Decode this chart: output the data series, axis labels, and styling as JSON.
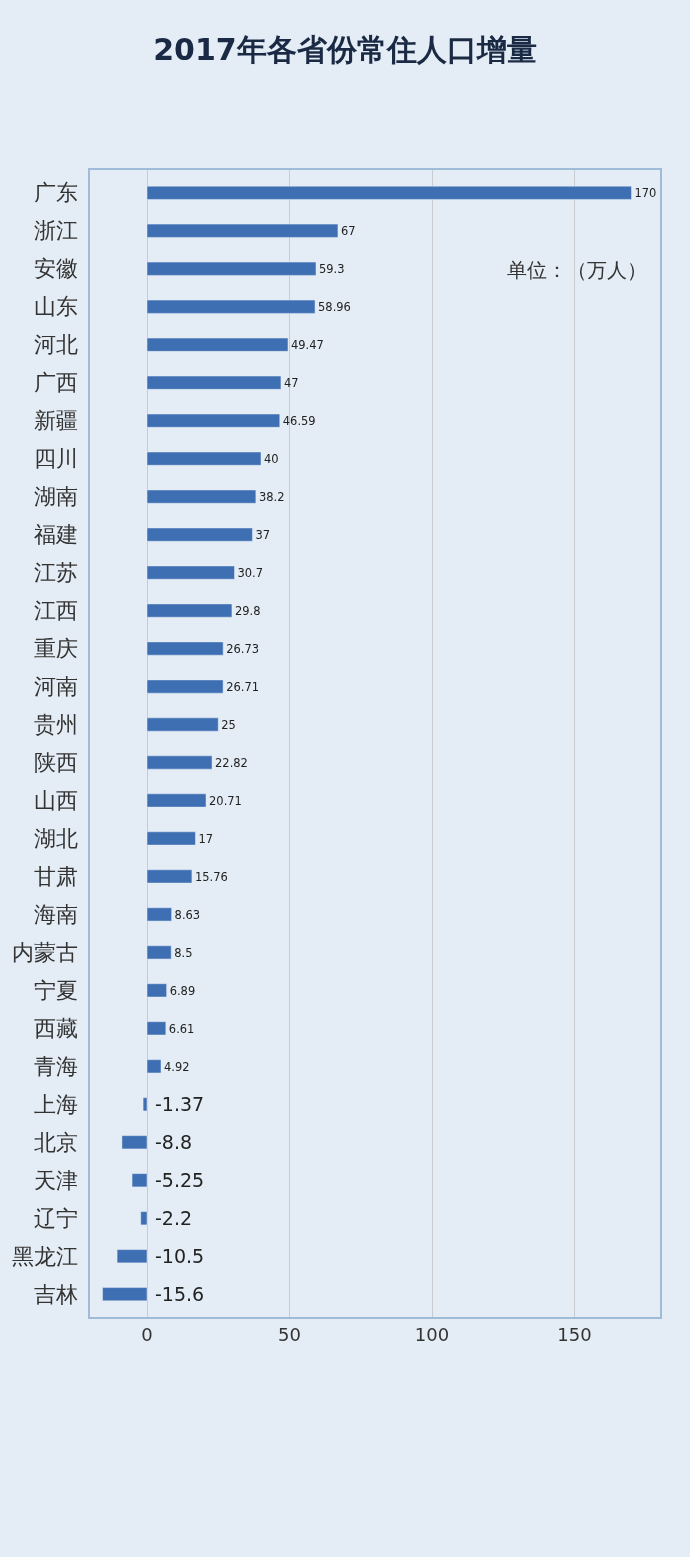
{
  "chart_data": {
    "type": "bar",
    "orientation": "horizontal",
    "title": "2017年各省份常住人口增量",
    "categories": [
      "广东",
      "浙江",
      "安徽",
      "山东",
      "河北",
      "广西",
      "新疆",
      "四川",
      "湖南",
      "福建",
      "江苏",
      "江西",
      "重庆",
      "河南",
      "贵州",
      "陕西",
      "山西",
      "湖北",
      "甘肃",
      "海南",
      "内蒙古",
      "宁夏",
      "西藏",
      "青海",
      "上海",
      "北京",
      "天津",
      "辽宁",
      "黑龙江",
      "吉林"
    ],
    "values": [
      170,
      67,
      59.3,
      58.96,
      49.47,
      47,
      46.59,
      40,
      38.2,
      37,
      30.7,
      29.8,
      26.73,
      26.71,
      25,
      22.82,
      20.71,
      17,
      15.76,
      8.63,
      8.5,
      6.89,
      6.61,
      4.92,
      -1.37,
      -8.8,
      -5.25,
      -2.2,
      -10.5,
      -15.6
    ],
    "color": "#3f6fb3",
    "xlim": [
      -20,
      180
    ],
    "xticks": [
      0,
      50,
      100,
      150
    ],
    "grid": "x",
    "data_labels": true,
    "annotations": [
      "单位：（万人）"
    ]
  }
}
